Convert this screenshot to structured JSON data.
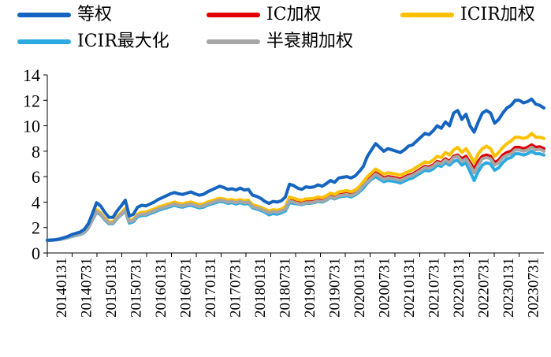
{
  "chart_data": {
    "type": "line",
    "title": "",
    "xlabel": "",
    "ylabel": "",
    "ylim": [
      0,
      14
    ],
    "yticks": [
      0,
      2,
      4,
      6,
      8,
      10,
      12,
      14
    ],
    "grid": false,
    "legend_position": "top",
    "x_tick_labels": [
      "20140131",
      "20140731",
      "20150131",
      "20150731",
      "20160131",
      "20160731",
      "20170131",
      "20170731",
      "20180131",
      "20180731",
      "20190131",
      "20190731",
      "20200131",
      "20200731",
      "20210131",
      "20210731",
      "20220131",
      "20220731",
      "20230131",
      "20230731"
    ],
    "series": [
      {
        "name": "等权",
        "color": "#1565C0",
        "values": [
          1.0,
          1.02,
          1.05,
          1.1,
          1.2,
          1.3,
          1.45,
          1.55,
          1.65,
          1.85,
          2.3,
          3.1,
          3.95,
          3.7,
          3.2,
          2.8,
          2.8,
          3.3,
          3.7,
          4.15,
          2.9,
          3.05,
          3.6,
          3.75,
          3.7,
          3.85,
          4.0,
          4.2,
          4.35,
          4.5,
          4.65,
          4.75,
          4.65,
          4.6,
          4.7,
          4.8,
          4.65,
          4.55,
          4.6,
          4.8,
          4.95,
          5.1,
          5.25,
          5.15,
          5.0,
          5.05,
          4.95,
          5.1,
          4.95,
          5.0,
          4.55,
          4.45,
          4.3,
          4.05,
          3.9,
          4.05,
          4.0,
          4.1,
          4.4,
          5.4,
          5.3,
          5.1,
          5.0,
          5.2,
          5.15,
          5.2,
          5.35,
          5.25,
          5.45,
          5.7,
          5.55,
          5.9,
          5.95,
          6.0,
          5.9,
          6.05,
          6.4,
          6.8,
          7.6,
          8.1,
          8.6,
          8.3,
          8.0,
          8.2,
          8.1,
          8.0,
          7.9,
          8.1,
          8.4,
          8.5,
          8.8,
          9.1,
          9.4,
          9.3,
          9.6,
          10.0,
          9.8,
          10.3,
          10.0,
          11.0,
          11.2,
          10.5,
          10.9,
          10.0,
          9.5,
          10.3,
          11.0,
          11.2,
          11.0,
          10.2,
          10.5,
          11.0,
          11.4,
          11.6,
          12.0,
          12.0,
          11.8,
          11.9,
          12.1,
          11.7,
          11.6,
          11.4
        ]
      },
      {
        "name": "IC加权",
        "color": "#E00000",
        "values": [
          1.0,
          1.01,
          1.03,
          1.08,
          1.15,
          1.25,
          1.35,
          1.42,
          1.5,
          1.65,
          2.0,
          2.7,
          3.3,
          3.1,
          2.7,
          2.4,
          2.4,
          2.8,
          3.1,
          3.4,
          2.5,
          2.6,
          3.0,
          3.1,
          3.1,
          3.25,
          3.35,
          3.5,
          3.6,
          3.7,
          3.8,
          3.9,
          3.8,
          3.75,
          3.85,
          3.9,
          3.8,
          3.7,
          3.75,
          3.9,
          4.0,
          4.1,
          4.2,
          4.15,
          4.05,
          4.1,
          4.0,
          4.1,
          4.0,
          4.05,
          3.7,
          3.6,
          3.5,
          3.35,
          3.2,
          3.3,
          3.25,
          3.35,
          3.5,
          4.2,
          4.1,
          4.0,
          3.95,
          4.05,
          4.05,
          4.1,
          4.2,
          4.15,
          4.3,
          4.5,
          4.4,
          4.6,
          4.65,
          4.7,
          4.6,
          4.75,
          5.0,
          5.4,
          5.7,
          6.0,
          6.3,
          6.1,
          5.9,
          6.0,
          5.95,
          5.9,
          5.8,
          5.95,
          6.1,
          6.2,
          6.4,
          6.6,
          6.8,
          6.75,
          6.9,
          7.2,
          7.1,
          7.4,
          7.2,
          7.6,
          7.7,
          7.4,
          7.6,
          7.1,
          6.6,
          7.2,
          7.6,
          7.7,
          7.6,
          7.1,
          7.3,
          7.7,
          7.9,
          8.0,
          8.3,
          8.3,
          8.2,
          8.3,
          8.5,
          8.3,
          8.35,
          8.2
        ]
      },
      {
        "name": "ICIR加权",
        "color": "#FFC000",
        "values": [
          1.0,
          1.01,
          1.04,
          1.09,
          1.17,
          1.27,
          1.38,
          1.46,
          1.55,
          1.7,
          2.05,
          2.75,
          3.4,
          3.15,
          2.75,
          2.45,
          2.45,
          2.85,
          3.15,
          3.5,
          2.55,
          2.65,
          3.05,
          3.2,
          3.2,
          3.35,
          3.45,
          3.6,
          3.7,
          3.8,
          3.9,
          4.0,
          3.9,
          3.85,
          3.95,
          4.0,
          3.9,
          3.8,
          3.85,
          4.0,
          4.1,
          4.2,
          4.3,
          4.25,
          4.15,
          4.2,
          4.1,
          4.2,
          4.1,
          4.15,
          3.8,
          3.7,
          3.6,
          3.45,
          3.3,
          3.4,
          3.35,
          3.45,
          3.65,
          4.4,
          4.3,
          4.2,
          4.15,
          4.25,
          4.25,
          4.3,
          4.4,
          4.35,
          4.5,
          4.7,
          4.6,
          4.8,
          4.85,
          4.9,
          4.8,
          4.95,
          5.2,
          5.6,
          6.0,
          6.3,
          6.6,
          6.4,
          6.2,
          6.3,
          6.25,
          6.2,
          6.1,
          6.25,
          6.4,
          6.55,
          6.75,
          6.95,
          7.15,
          7.1,
          7.3,
          7.6,
          7.5,
          7.9,
          7.7,
          8.1,
          8.3,
          7.9,
          8.2,
          7.7,
          7.1,
          7.8,
          8.2,
          8.4,
          8.2,
          7.6,
          7.9,
          8.3,
          8.6,
          8.8,
          9.1,
          9.1,
          9.0,
          9.1,
          9.4,
          9.1,
          9.1,
          9.0
        ]
      },
      {
        "name": "ICIR最大化",
        "color": "#2BAAE2",
        "values": [
          1.0,
          1.0,
          1.02,
          1.06,
          1.12,
          1.2,
          1.3,
          1.37,
          1.45,
          1.6,
          1.95,
          2.6,
          3.2,
          3.0,
          2.6,
          2.3,
          2.3,
          2.7,
          3.0,
          3.3,
          2.35,
          2.45,
          2.85,
          2.95,
          2.95,
          3.1,
          3.2,
          3.35,
          3.45,
          3.55,
          3.65,
          3.75,
          3.65,
          3.6,
          3.7,
          3.75,
          3.65,
          3.55,
          3.6,
          3.75,
          3.85,
          3.95,
          4.05,
          4.0,
          3.9,
          3.95,
          3.85,
          3.95,
          3.85,
          3.9,
          3.55,
          3.45,
          3.35,
          3.2,
          3.0,
          3.1,
          3.05,
          3.15,
          3.3,
          3.95,
          3.9,
          3.85,
          3.8,
          3.9,
          3.9,
          3.95,
          4.05,
          4.0,
          4.15,
          4.35,
          4.25,
          4.4,
          4.45,
          4.5,
          4.4,
          4.55,
          4.8,
          5.1,
          5.5,
          5.8,
          6.0,
          5.8,
          5.6,
          5.7,
          5.65,
          5.6,
          5.5,
          5.65,
          5.8,
          5.9,
          6.1,
          6.3,
          6.5,
          6.45,
          6.6,
          6.9,
          6.8,
          7.1,
          6.9,
          7.2,
          7.3,
          6.9,
          7.1,
          6.4,
          5.7,
          6.4,
          6.9,
          7.1,
          7.0,
          6.5,
          6.7,
          7.1,
          7.4,
          7.5,
          7.8,
          7.8,
          7.7,
          7.8,
          8.0,
          7.8,
          7.8,
          7.7
        ]
      },
      {
        "name": "半衰期加权",
        "color": "#A6A6A6",
        "values": [
          1.0,
          1.01,
          1.03,
          1.07,
          1.14,
          1.23,
          1.33,
          1.4,
          1.48,
          1.63,
          1.98,
          2.65,
          3.25,
          3.05,
          2.65,
          2.35,
          2.35,
          2.75,
          3.05,
          3.35,
          2.45,
          2.55,
          2.95,
          3.05,
          3.05,
          3.2,
          3.3,
          3.45,
          3.55,
          3.65,
          3.75,
          3.85,
          3.75,
          3.7,
          3.8,
          3.85,
          3.75,
          3.65,
          3.7,
          3.85,
          3.95,
          4.05,
          4.15,
          4.1,
          4.0,
          4.05,
          3.95,
          4.05,
          3.95,
          4.0,
          3.65,
          3.55,
          3.45,
          3.3,
          3.15,
          3.25,
          3.2,
          3.3,
          3.45,
          4.1,
          4.0,
          3.9,
          3.85,
          3.95,
          3.95,
          4.0,
          4.1,
          4.05,
          4.2,
          4.4,
          4.3,
          4.5,
          4.55,
          4.6,
          4.5,
          4.65,
          4.9,
          5.3,
          5.6,
          5.9,
          6.2,
          6.0,
          5.8,
          5.9,
          5.85,
          5.8,
          5.7,
          5.85,
          6.0,
          6.1,
          6.3,
          6.5,
          6.7,
          6.65,
          6.8,
          7.1,
          7.0,
          7.3,
          7.1,
          7.5,
          7.6,
          7.2,
          7.4,
          6.9,
          6.3,
          6.9,
          7.4,
          7.5,
          7.4,
          6.9,
          7.1,
          7.5,
          7.7,
          7.8,
          8.1,
          8.1,
          8.0,
          8.1,
          8.3,
          8.1,
          8.15,
          8.0
        ]
      }
    ]
  }
}
